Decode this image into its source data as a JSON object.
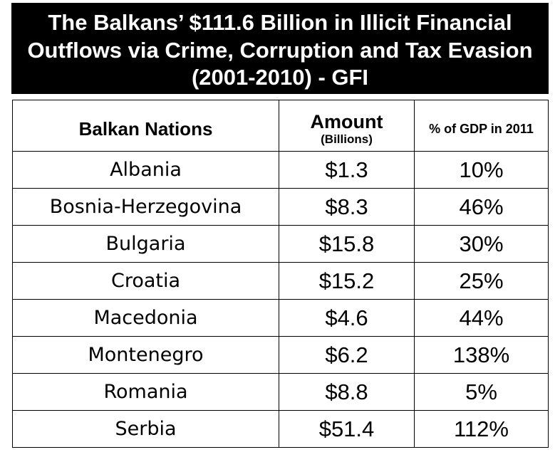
{
  "title": "The Balkans’ $111.6 Billion in Illicit Financial Outflows via Crime, Corruption and Tax Evasion (2001-2010) - GFI",
  "headers": {
    "nation": "Balkan Nations",
    "amount": "Amount",
    "amount_unit": "(Billions)",
    "gdp": "% of GDP in 2011"
  },
  "colors": {
    "title_background": "#000000",
    "title_text": "#ffffff",
    "border": "#000000"
  },
  "chart_data": {
    "type": "table",
    "title": "The Balkans’ $111.6 Billion in Illicit Financial Outflows via Crime, Corruption and Tax Evasion (2001-2010) - GFI",
    "columns": [
      "Balkan Nations",
      "Amount (Billions)",
      "% of GDP in 2011"
    ],
    "rows": [
      {
        "nation": "Albania",
        "amount": "$1.3",
        "pct": "10%"
      },
      {
        "nation": "Bosnia-Herzegovina",
        "amount": "$8.3",
        "pct": "46%"
      },
      {
        "nation": "Bulgaria",
        "amount": "$15.8",
        "pct": "30%"
      },
      {
        "nation": "Croatia",
        "amount": "$15.2",
        "pct": "25%"
      },
      {
        "nation": "Macedonia",
        "amount": "$4.6",
        "pct": "44%"
      },
      {
        "nation": "Montenegro",
        "amount": "$6.2",
        "pct": "138%"
      },
      {
        "nation": "Romania",
        "amount": "$8.8",
        "pct": "5%"
      },
      {
        "nation": "Serbia",
        "amount": "$51.4",
        "pct": "112%"
      }
    ]
  }
}
